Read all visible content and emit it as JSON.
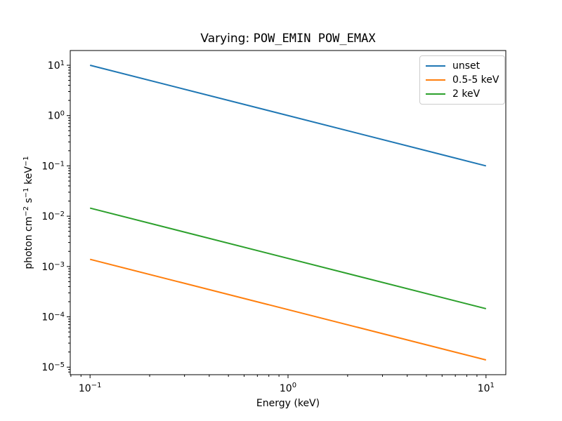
{
  "figure": {
    "background": "#ffffff",
    "axis_color": "#000000",
    "legend_border_color": "#cccccc"
  },
  "chart_data": {
    "type": "line",
    "title_prefix": "Varying: ",
    "title_mono": "POW_EMIN POW_EMAX",
    "xlabel": "Energy (keV)",
    "ylabel_parts": [
      {
        "t": "photon cm"
      },
      {
        "sup": "−2"
      },
      {
        "t": " s"
      },
      {
        "sup": "−1"
      },
      {
        "t": " keV"
      },
      {
        "sup": "−1"
      }
    ],
    "xscale": "log",
    "yscale": "log",
    "xlim": [
      0.07943,
      12.589
    ],
    "ylim": [
      7.08e-06,
      19.63
    ],
    "grid": false,
    "x_major_ticks": [
      0.1,
      1,
      10
    ],
    "x_tick_labels": [
      [
        "10",
        "−1"
      ],
      [
        "10",
        "0"
      ],
      [
        "10",
        "1"
      ]
    ],
    "y_major_ticks": [
      1e-05,
      0.0001,
      0.001,
      0.01,
      0.1,
      1,
      10
    ],
    "y_tick_labels": [
      [
        "10",
        "−5"
      ],
      [
        "10",
        "−4"
      ],
      [
        "10",
        "−3"
      ],
      [
        "10",
        "−2"
      ],
      [
        "10",
        "−1"
      ],
      [
        "10",
        "0"
      ],
      [
        "10",
        "1"
      ]
    ],
    "legend_position": "upper right",
    "series": [
      {
        "name": "unset",
        "color": "#1f77b4",
        "x": [
          0.1,
          10
        ],
        "y": [
          10,
          0.1
        ]
      },
      {
        "name": "0.5-5 keV",
        "color": "#ff7f0e",
        "x": [
          0.1,
          10
        ],
        "y": [
          0.00139,
          1.39e-05
        ]
      },
      {
        "name": "2 keV",
        "color": "#2ca02c",
        "x": [
          0.1,
          10
        ],
        "y": [
          0.0145,
          0.000145
        ]
      }
    ]
  }
}
